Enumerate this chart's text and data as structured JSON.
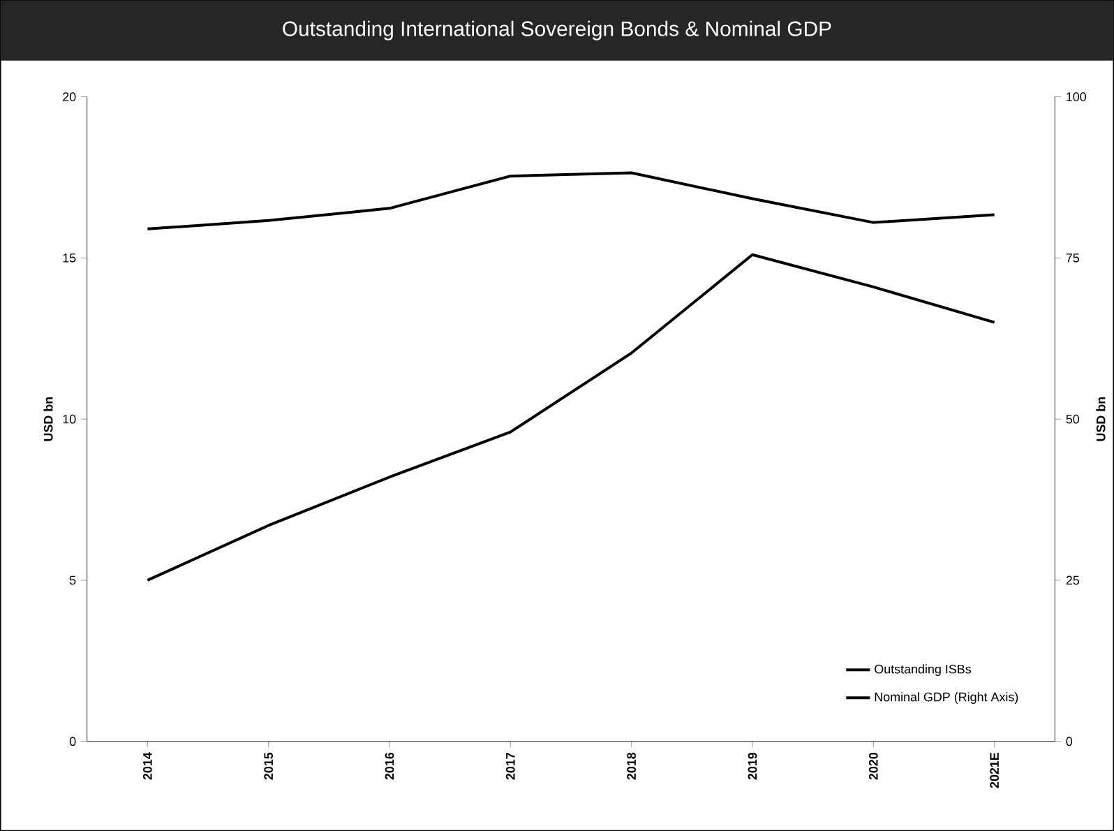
{
  "chart_data": {
    "type": "line",
    "title": "Outstanding International Sovereign Bonds & Nominal GDP",
    "categories": [
      "2014",
      "2015",
      "2016",
      "2017",
      "2018",
      "2019",
      "2020",
      "2021E"
    ],
    "series": [
      {
        "name": "Outstanding ISBs",
        "color": "#000000",
        "values": [
          5.0,
          6.7,
          8.2,
          9.6,
          12.05,
          15.1,
          14.1,
          13.0
        ]
      },
      {
        "name": "Nominal GDP (Right Axis)",
        "color": "#000000",
        "axis": "y2",
        "values": [
          79.5,
          80.8,
          82.7,
          87.7,
          88.2,
          84.2,
          80.5,
          81.7
        ]
      }
    ],
    "ylabel": "USD bn",
    "y2label": "USD bn",
    "ylim": [
      0,
      20
    ],
    "yticks": [
      0,
      5,
      10,
      15,
      20
    ],
    "y2lim": [
      0,
      100
    ],
    "y2ticks": [
      0,
      25,
      50,
      75,
      100
    ],
    "legend": "bottom right",
    "grid": false,
    "marker": "none",
    "line_style": "solid"
  }
}
